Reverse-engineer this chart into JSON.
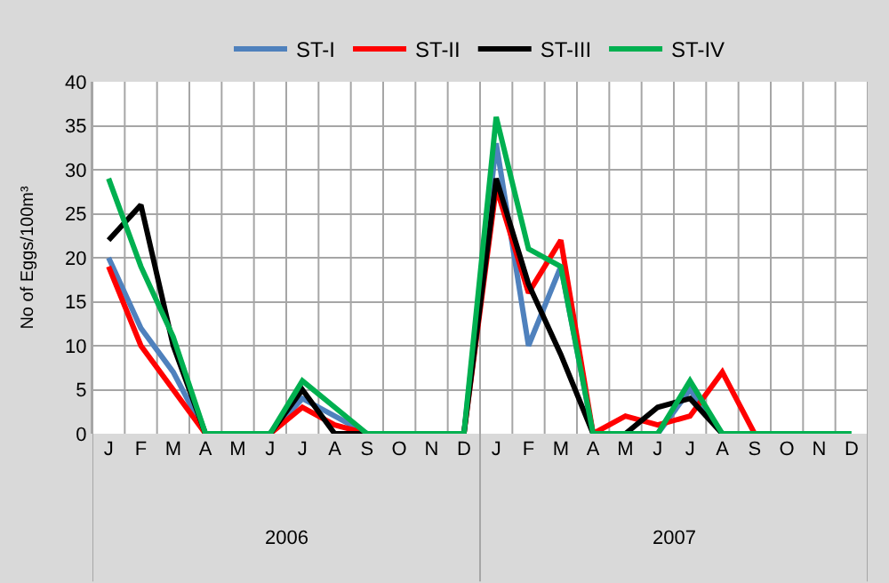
{
  "chart_data": {
    "type": "line",
    "ylabel": "No of Eggs/100m³",
    "categories": [
      "J",
      "F",
      "M",
      "A",
      "M",
      "J",
      "J",
      "A",
      "S",
      "O",
      "N",
      "D",
      "J",
      "F",
      "M",
      "A",
      "M",
      "J",
      "J",
      "A",
      "S",
      "O",
      "N",
      "D"
    ],
    "series": [
      {
        "name": "ST-I",
        "color": "#4f81bd",
        "values": [
          20,
          12,
          7,
          0,
          0,
          0,
          4,
          2,
          0,
          0,
          0,
          0,
          33,
          10,
          19,
          0,
          0,
          0,
          5,
          0,
          0,
          null,
          null,
          null
        ]
      },
      {
        "name": "ST-II",
        "color": "#ff0000",
        "values": [
          19,
          10,
          5,
          0,
          0,
          0,
          3,
          1,
          0,
          0,
          0,
          0,
          28,
          16,
          22,
          0,
          2,
          1,
          2,
          7,
          0,
          0,
          null,
          null
        ]
      },
      {
        "name": "ST-III",
        "color": "#000000",
        "values": [
          22,
          26,
          10,
          0,
          0,
          0,
          5,
          0,
          0,
          0,
          0,
          0,
          29,
          17,
          9,
          0,
          0,
          3,
          4,
          0,
          0,
          null,
          null,
          null
        ]
      },
      {
        "name": "ST-IV",
        "color": "#00b050",
        "values": [
          29,
          19,
          11,
          0,
          0,
          0,
          6,
          3,
          0,
          0,
          0,
          0,
          36,
          21,
          19,
          0,
          0,
          0,
          6,
          0,
          0,
          0,
          0,
          0
        ]
      }
    ],
    "annotations": [
      "2006",
      "2007"
    ],
    "ylim": [
      0,
      40
    ],
    "yticks": [
      0,
      5,
      10,
      15,
      20,
      25,
      30,
      35,
      40
    ],
    "grid": true,
    "legend": "top",
    "marker": "none",
    "line_style": "solid"
  }
}
